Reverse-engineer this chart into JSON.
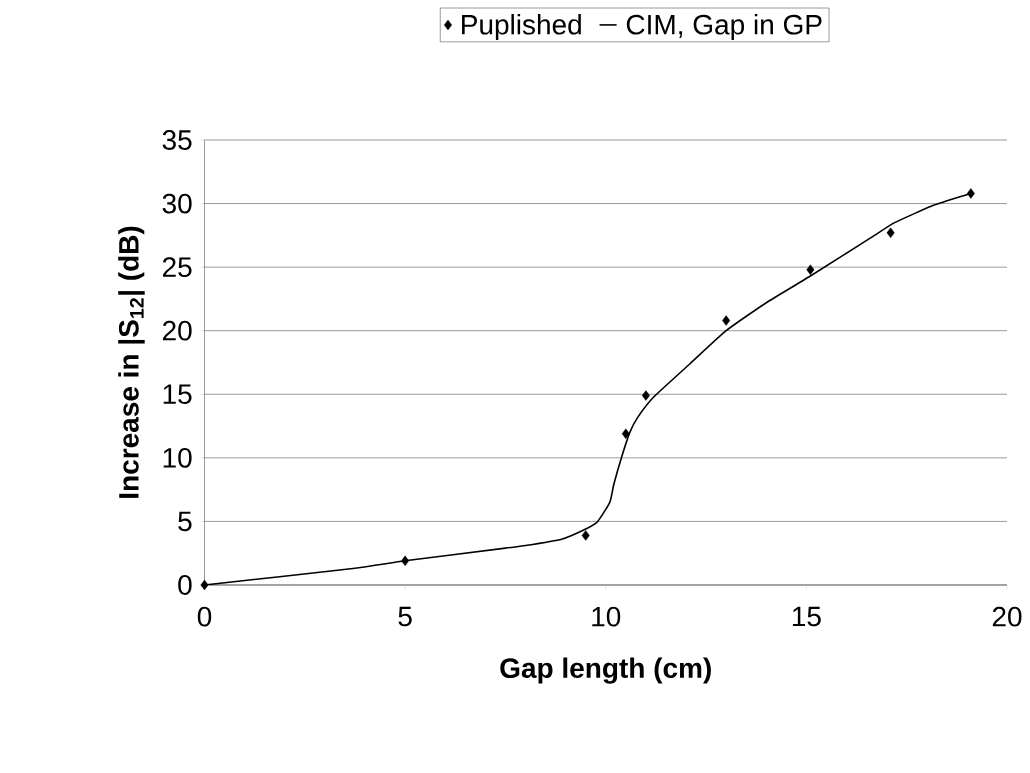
{
  "chart_data": {
    "type": "scatter",
    "xlabel": "Gap length (cm)",
    "ylabel": "Increase in |S$_{12}$| (dB)",
    "xlim": [
      0,
      20
    ],
    "ylim": [
      0,
      35
    ],
    "xticks": [
      0,
      5,
      10,
      15,
      20
    ],
    "yticks": [
      0,
      5,
      10,
      15,
      20,
      25,
      30,
      35
    ],
    "grid": "y",
    "legend": "top",
    "series": [
      {
        "name": "Puplished",
        "marker": "diamond",
        "color": "#000000",
        "x": [
          0,
          5,
          9.5,
          10.5,
          11,
          13,
          15.1,
          17.1,
          19.1
        ],
        "values": [
          0,
          1.9,
          3.9,
          11.9,
          14.9,
          20.8,
          24.8,
          27.7,
          30.8
        ]
      },
      {
        "name": "CIM, Gap in GP",
        "type": "line",
        "marker": "none",
        "line_style": "solid",
        "color": "#000000",
        "x": [
          0,
          3.7,
          5,
          7.5,
          8,
          8.9,
          9.5,
          9.8,
          10.1,
          10.2,
          10.4,
          10.6,
          10.8,
          11.2,
          12.1,
          13,
          14,
          15.1,
          16.6,
          17.2,
          18.2,
          19.1
        ],
        "values": [
          0,
          1.3,
          1.9,
          2.9,
          3.1,
          3.6,
          4.4,
          5,
          6.5,
          7.9,
          10.1,
          12,
          13.2,
          14.8,
          17.4,
          20,
          22.2,
          24.3,
          27.3,
          28.5,
          29.9,
          30.8
        ]
      }
    ]
  }
}
